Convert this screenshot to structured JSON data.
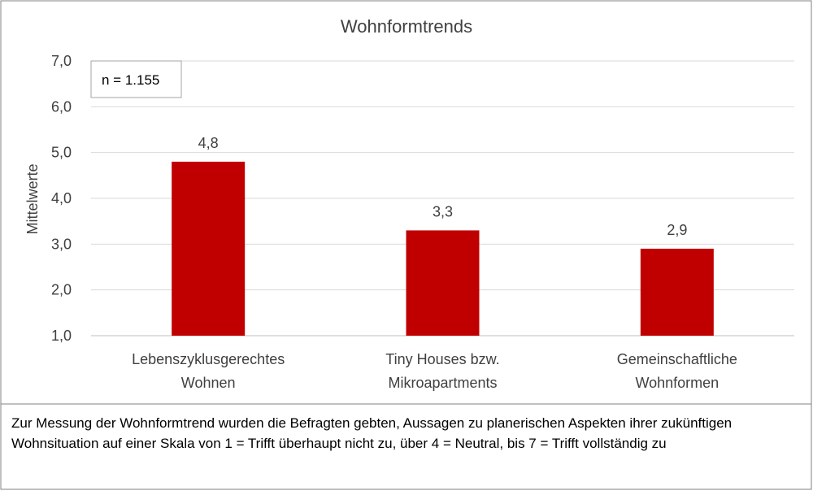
{
  "chart_data": {
    "type": "bar",
    "title": "Wohnformtrends",
    "ylabel": "Mittelwerte",
    "xlabel": "",
    "categories": [
      [
        "Lebenszyklusgerechtes",
        "Wohnen"
      ],
      [
        "Tiny Houses bzw.",
        "Mikroapartments"
      ],
      [
        "Gemeinschaftliche",
        "Wohnformen"
      ]
    ],
    "values": [
      4.8,
      3.3,
      2.9
    ],
    "value_labels": [
      "4,8",
      "3,3",
      "2,9"
    ],
    "ylim": [
      1.0,
      7.0
    ],
    "yticks": [
      1.0,
      2.0,
      3.0,
      4.0,
      5.0,
      6.0,
      7.0
    ],
    "ytick_labels": [
      "1,0",
      "2,0",
      "3,0",
      "4,0",
      "5,0",
      "6,0",
      "7,0"
    ],
    "grid": true,
    "bar_color": "#c00000",
    "annotation": "n = 1.155"
  },
  "footnote": "Zur Messung der Wohnformtrend wurden die Befragten gebten, Aussagen zu planerischen Aspekten ihrer zukünftigen Wohnsituation auf einer Skala von 1 = Trifft überhaupt nicht zu, über 4 = Neutral, bis 7 = Trifft vollständig zu"
}
